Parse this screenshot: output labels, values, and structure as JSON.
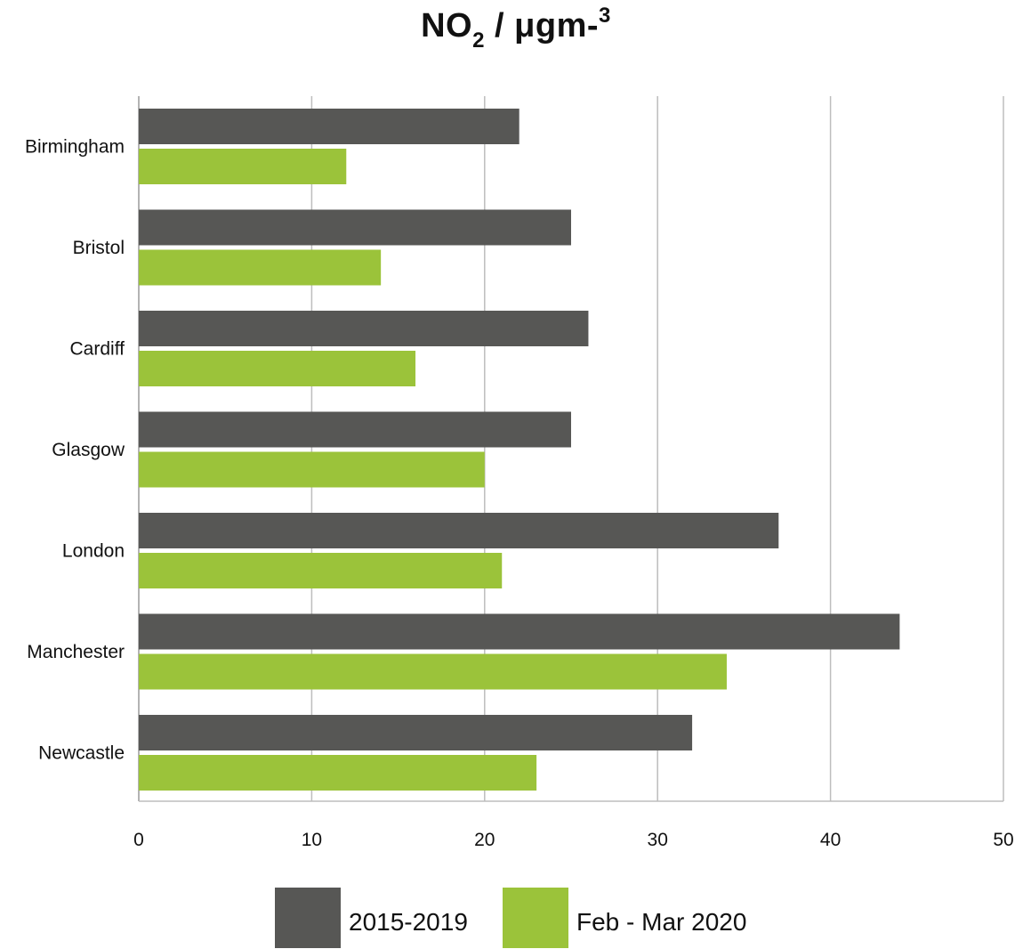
{
  "chart_data": {
    "type": "bar",
    "orientation": "horizontal",
    "title_parts": {
      "main": "NO",
      "subscript": "2",
      "unit": " / μgm-",
      "superscript": "3"
    },
    "categories": [
      "Birmingham",
      "Bristol",
      "Cardiff",
      "Glasgow",
      "London",
      "Manchester",
      "Newcastle"
    ],
    "series": [
      {
        "name": "2015-2019",
        "color": "#575755",
        "values": [
          22,
          25,
          26,
          25,
          37,
          44,
          32
        ]
      },
      {
        "name": "Feb - Mar 2020",
        "color": "#9bc33a",
        "values": [
          12,
          14,
          16,
          20,
          21,
          34,
          23
        ]
      }
    ],
    "xlim": [
      0,
      50
    ],
    "x_ticks": [
      "0",
      "10",
      "20",
      "30",
      "40",
      "50"
    ],
    "grid": true,
    "legend_position": "bottom"
  }
}
